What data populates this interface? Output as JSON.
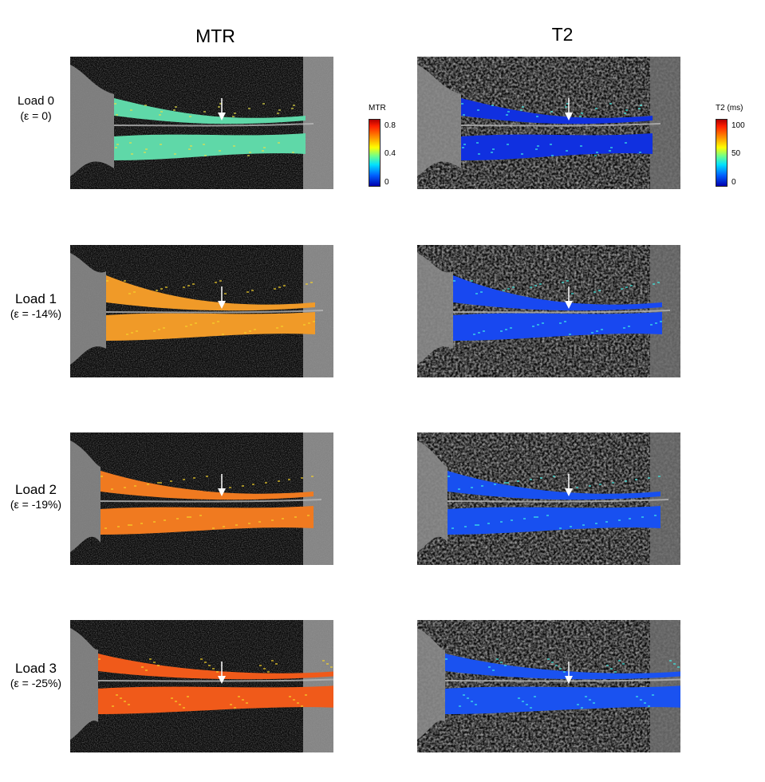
{
  "columns": {
    "mtr_title": "MTR",
    "t2_title": "T2"
  },
  "rows": [
    {
      "load": "Load 0",
      "strain": "(ε = 0)"
    },
    {
      "load": "Load 1",
      "strain": "(ε = -14%)"
    },
    {
      "load": "Load 2",
      "strain": "(ε = -19%)"
    },
    {
      "load": "Load 3",
      "strain": "(ε = -25%)"
    }
  ],
  "colorbars": {
    "mtr": {
      "title": "MTR",
      "ticks": [
        "0.8",
        "0.4",
        "0"
      ]
    },
    "t2": {
      "title": "T2 (ms)",
      "ticks": [
        "100",
        "50",
        "0"
      ]
    }
  },
  "colors": {
    "mtr_map_rows": [
      "#5fd8a8",
      "#f09a28",
      "#f07a20",
      "#f05a1a"
    ],
    "t2_map_rows": [
      "#1030e0",
      "#1848f0",
      "#1850f0",
      "#1a52f0"
    ],
    "arrow": "#ffffff"
  }
}
